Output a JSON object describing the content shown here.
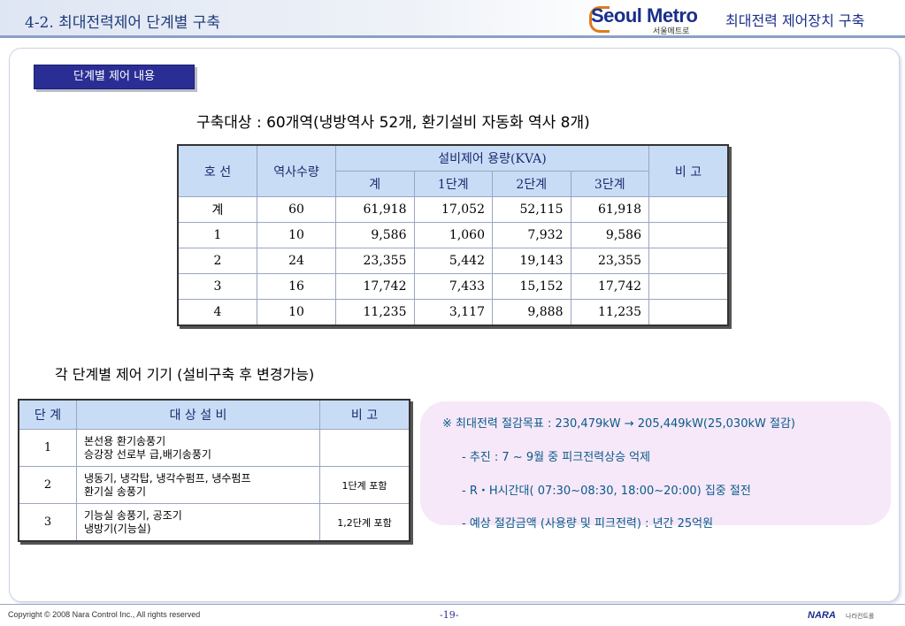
{
  "header": {
    "title": "4-2. 최대전력제어 단계별 구축",
    "logo_text": "Seoul Metro",
    "logo_sub": "서울메트로",
    "logo_title": "최대전력 제어장치 구축"
  },
  "section_tag": "단계별 제어 내용",
  "heading1": "구축대상 : 60개역(냉방역사 52개, 환기설비 자동화 역사 8개)",
  "table1": {
    "headers": {
      "line": "호 선",
      "stations": "역사수량",
      "capacity": "설비제어 용량(KVA)",
      "total": "계",
      "step1": "1단계",
      "step2": "2단계",
      "step3": "3단계",
      "remark": "비 고"
    },
    "rows": [
      {
        "line": "계",
        "stations": "60",
        "total": "61,918",
        "s1": "17,052",
        "s2": "52,115",
        "s3": "61,918",
        "remark": ""
      },
      {
        "line": "1",
        "stations": "10",
        "total": "9,586",
        "s1": "1,060",
        "s2": "7,932",
        "s3": "9,586",
        "remark": ""
      },
      {
        "line": "2",
        "stations": "24",
        "total": "23,355",
        "s1": "5,442",
        "s2": "19,143",
        "s3": "23,355",
        "remark": ""
      },
      {
        "line": "3",
        "stations": "16",
        "total": "17,742",
        "s1": "7,433",
        "s2": "15,152",
        "s3": "17,742",
        "remark": ""
      },
      {
        "line": "4",
        "stations": "10",
        "total": "11,235",
        "s1": "3,117",
        "s2": "9,888",
        "s3": "11,235",
        "remark": ""
      }
    ]
  },
  "heading2": "각 단계별 제어 기기 (설비구축 후 변경가능)",
  "table2": {
    "headers": {
      "step": "단 계",
      "equipment": "대 상 설 비",
      "remark": "비 고"
    },
    "rows": [
      {
        "step": "1",
        "eq1": "본선용 환기송풍기",
        "eq2": "승강장 선로부 급,배기송풍기",
        "remark": ""
      },
      {
        "step": "2",
        "eq1": "냉동기, 냉각탑, 냉각수펌프, 냉수펌프",
        "eq2": "환기실 송풍기",
        "remark": "1단계 포함"
      },
      {
        "step": "3",
        "eq1": "기능실 송풍기, 공조기",
        "eq2": "냉방기(기능실)",
        "remark": "1,2단계 포함"
      }
    ]
  },
  "callout": {
    "line1": "※ 최대전력 절감목표 : 230,479kW → 205,449kW(25,030kW 절감)",
    "line2": "- 추진 : 7 ~ 9월 중 피크전력상승 억제",
    "line3": "- R・H시간대( 07:30~08:30, 18:00~20:00) 집중 절전",
    "line4": "- 예상 절감금액 (사용량 및 피크전력) : 년간 25억원"
  },
  "footer": {
    "copyright": "Copyright ©  2008 Nara Control Inc., All rights reserved",
    "page": "-19-",
    "brand": "NARA",
    "brand_sub": "나라컨트롤"
  }
}
